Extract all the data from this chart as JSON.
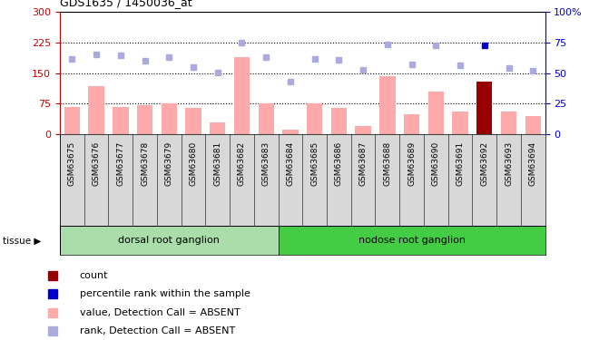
{
  "title": "GDS1635 / 1450036_at",
  "samples": [
    "GSM63675",
    "GSM63676",
    "GSM63677",
    "GSM63678",
    "GSM63679",
    "GSM63680",
    "GSM63681",
    "GSM63682",
    "GSM63683",
    "GSM63684",
    "GSM63685",
    "GSM63686",
    "GSM63687",
    "GSM63688",
    "GSM63689",
    "GSM63690",
    "GSM63691",
    "GSM63692",
    "GSM63693",
    "GSM63694"
  ],
  "bar_values": [
    68,
    118,
    68,
    72,
    76,
    65,
    30,
    190,
    76,
    12,
    75,
    65,
    20,
    143,
    50,
    105,
    55,
    130,
    55,
    45
  ],
  "bar_colors": [
    "#ffaaaa",
    "#ffaaaa",
    "#ffaaaa",
    "#ffaaaa",
    "#ffaaaa",
    "#ffaaaa",
    "#ffaaaa",
    "#ffaaaa",
    "#ffaaaa",
    "#ffaaaa",
    "#ffaaaa",
    "#ffaaaa",
    "#ffaaaa",
    "#ffaaaa",
    "#ffaaaa",
    "#ffaaaa",
    "#ffaaaa",
    "#990000",
    "#ffaaaa",
    "#ffaaaa"
  ],
  "rank_values": [
    185,
    195,
    193,
    180,
    190,
    165,
    152,
    225,
    190,
    130,
    185,
    183,
    159,
    220,
    172,
    218,
    170,
    218,
    162,
    155
  ],
  "rank_colors": [
    "#aaaadd",
    "#aaaadd",
    "#aaaadd",
    "#aaaadd",
    "#aaaadd",
    "#aaaadd",
    "#aaaadd",
    "#aaaadd",
    "#aaaadd",
    "#aaaadd",
    "#aaaadd",
    "#aaaadd",
    "#aaaadd",
    "#aaaadd",
    "#aaaadd",
    "#aaaadd",
    "#aaaadd",
    "#0000cc",
    "#aaaadd",
    "#aaaadd"
  ],
  "ylim_left": [
    0,
    300
  ],
  "ylim_right": [
    0,
    100
  ],
  "yticks_left": [
    0,
    75,
    150,
    225,
    300
  ],
  "yticks_right": [
    0,
    25,
    50,
    75,
    100
  ],
  "yticklabels_right": [
    "0",
    "25",
    "50",
    "75",
    "100%"
  ],
  "hlines": [
    75,
    150,
    225
  ],
  "tissue_groups": [
    {
      "label": "dorsal root ganglion",
      "start": 0,
      "end": 8,
      "color": "#aaddaa"
    },
    {
      "label": "nodose root ganglion",
      "start": 9,
      "end": 19,
      "color": "#44cc44"
    }
  ],
  "legend_items": [
    {
      "color": "#990000",
      "label": "count"
    },
    {
      "color": "#0000cc",
      "label": "percentile rank within the sample"
    },
    {
      "color": "#ffaaaa",
      "label": "value, Detection Call = ABSENT"
    },
    {
      "color": "#aaaadd",
      "label": "rank, Detection Call = ABSENT"
    }
  ],
  "tissue_label": "tissue",
  "left_axis_color": "#cc0000",
  "right_axis_color": "#0000cc"
}
